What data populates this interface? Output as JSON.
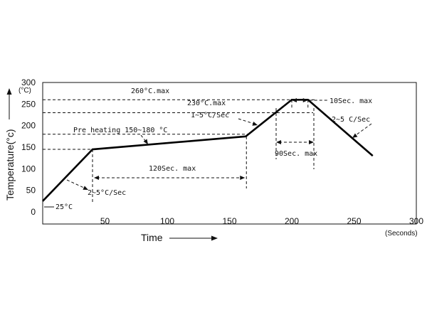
{
  "chart_data": {
    "type": "line",
    "ylabel": "Temperature(°c)",
    "xlabel": "Time",
    "x_unit": "(Seconds)",
    "y_unit": "(°C)",
    "xlim": [
      0,
      300
    ],
    "ylim": [
      0,
      300
    ],
    "x_ticks": [
      "50",
      "100",
      "150",
      "200",
      "250",
      "300"
    ],
    "y_ticks": [
      "0",
      "50",
      "100",
      "150",
      "200",
      "250",
      "300"
    ],
    "series": [
      {
        "x": [
          0,
          40,
          163,
          200,
          213,
          265
        ],
        "y": [
          25,
          145,
          175,
          260,
          260,
          130
        ]
      }
    ],
    "annotations": {
      "peak_max": "260°C.max",
      "t230_max": "230°C.max",
      "ramp_up_peak": "1~5°C/Sec",
      "hold_peak": "10Sec. max",
      "ramp_down": "2~5 C/Sec",
      "preheat": "Pre heating 150~180 °C",
      "preheat_time": "120Sec. max",
      "above_230": "90Sec. max",
      "ramp_up_start": "2~5°C/Sec",
      "start_temp": "25°C"
    }
  }
}
